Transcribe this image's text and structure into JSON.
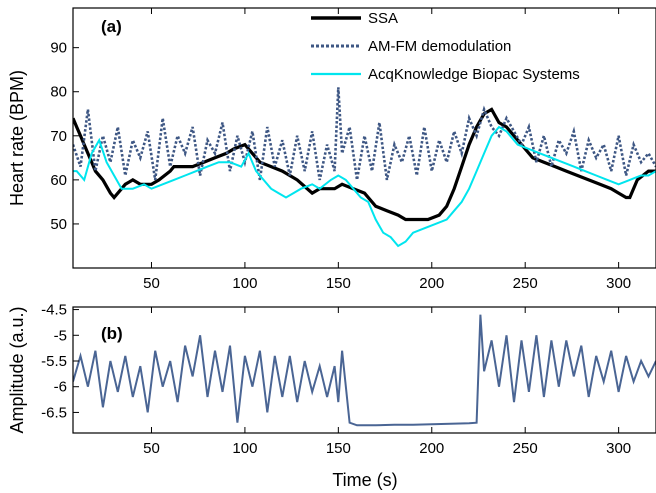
{
  "chart_data": [
    {
      "type": "line",
      "panel_label": "(a)",
      "ylabel": "Heart rate (BPM)",
      "xlim": [
        8,
        320
      ],
      "ylim": [
        40,
        99
      ],
      "xticks": [
        50,
        100,
        150,
        200,
        250,
        300
      ],
      "yticks": [
        50,
        60,
        70,
        80,
        90
      ],
      "grid": false,
      "legend_position": "top-center",
      "series": [
        {
          "name": "SSA",
          "color": "#000000",
          "style": "solid",
          "x": [
            8,
            10,
            12,
            14,
            18,
            20,
            24,
            28,
            30,
            34,
            36,
            40,
            44,
            50,
            54,
            60,
            62,
            66,
            72,
            78,
            84,
            90,
            94,
            100,
            104,
            108,
            114,
            120,
            128,
            136,
            140,
            148,
            152,
            158,
            164,
            170,
            176,
            182,
            186,
            192,
            198,
            204,
            208,
            212,
            216,
            220,
            224,
            228,
            232,
            236,
            240,
            244,
            248,
            254,
            260,
            266,
            272,
            278,
            284,
            290,
            296,
            300,
            304,
            306,
            310,
            316,
            320
          ],
          "values": [
            74,
            72,
            70,
            68,
            64,
            62,
            60,
            57,
            56,
            58,
            59,
            60,
            59,
            59,
            60,
            62,
            63,
            63,
            63,
            64,
            65,
            66,
            67,
            68,
            66,
            64,
            63,
            62,
            60,
            57,
            58,
            58,
            59,
            58,
            57,
            54,
            53,
            52,
            51,
            51,
            51,
            52,
            54,
            58,
            63,
            68,
            72,
            75,
            76,
            73,
            72,
            70,
            68,
            65,
            64,
            63,
            62,
            61,
            60,
            59,
            58,
            57,
            56,
            56,
            60,
            62,
            62
          ]
        },
        {
          "name": "AM-FM demodulation",
          "color": "#3e5784",
          "style": "dotted",
          "x": [
            8,
            12,
            16,
            20,
            24,
            28,
            32,
            36,
            40,
            44,
            48,
            52,
            56,
            60,
            64,
            68,
            72,
            76,
            80,
            84,
            88,
            92,
            96,
            100,
            104,
            108,
            112,
            116,
            120,
            124,
            128,
            132,
            136,
            140,
            144,
            148,
            150,
            152,
            156,
            160,
            164,
            168,
            172,
            176,
            180,
            184,
            188,
            192,
            196,
            200,
            204,
            208,
            212,
            216,
            220,
            224,
            228,
            232,
            236,
            240,
            244,
            248,
            252,
            256,
            260,
            264,
            268,
            272,
            276,
            280,
            284,
            288,
            292,
            296,
            300,
            304,
            308,
            312,
            316,
            320
          ],
          "values": [
            68,
            63,
            76,
            62,
            70,
            64,
            72,
            61,
            69,
            65,
            71,
            60,
            74,
            63,
            70,
            66,
            72,
            61,
            69,
            66,
            73,
            62,
            70,
            64,
            71,
            60,
            72,
            63,
            69,
            61,
            70,
            62,
            71,
            60,
            68,
            62,
            81,
            66,
            72,
            60,
            70,
            62,
            73,
            60,
            68,
            64,
            70,
            61,
            72,
            62,
            69,
            64,
            71,
            66,
            74,
            70,
            76,
            72,
            70,
            74,
            71,
            68,
            72,
            64,
            70,
            63,
            69,
            66,
            71,
            62,
            69,
            65,
            68,
            62,
            70,
            61,
            68,
            64,
            66,
            63
          ]
        },
        {
          "name": "AcqKnowledge Biopac Systems",
          "color": "#00e5ee",
          "style": "solid",
          "x": [
            8,
            10,
            14,
            18,
            22,
            26,
            30,
            34,
            40,
            46,
            50,
            56,
            62,
            68,
            74,
            80,
            86,
            92,
            98,
            102,
            106,
            110,
            114,
            118,
            122,
            126,
            130,
            136,
            140,
            146,
            150,
            154,
            158,
            162,
            166,
            170,
            174,
            178,
            182,
            186,
            190,
            196,
            202,
            208,
            212,
            216,
            220,
            224,
            228,
            232,
            236,
            240,
            246,
            252,
            258,
            264,
            270,
            276,
            282,
            288,
            294,
            300,
            306,
            312,
            316,
            320
          ],
          "values": [
            62,
            62,
            60,
            66,
            69,
            64,
            61,
            58,
            58,
            59,
            58,
            59,
            60,
            61,
            62,
            63,
            64,
            64,
            63,
            66,
            62,
            60,
            58,
            57,
            56,
            57,
            58,
            59,
            58,
            60,
            61,
            60,
            58,
            56,
            55,
            51,
            48,
            47,
            45,
            46,
            48,
            49,
            50,
            51,
            53,
            55,
            58,
            62,
            66,
            70,
            72,
            71,
            68,
            67,
            66,
            65,
            64,
            63,
            62,
            61,
            60,
            59,
            60,
            61,
            61,
            62
          ]
        }
      ]
    },
    {
      "type": "line",
      "panel_label": "(b)",
      "xlabel": "Time (s)",
      "ylabel": "Amplitude (a.u.)",
      "xlim": [
        8,
        320
      ],
      "ylim": [
        -6.9,
        -4.45
      ],
      "xticks": [
        50,
        100,
        150,
        200,
        250,
        300
      ],
      "yticks": [
        -4.5,
        -5,
        -5.5,
        -6,
        -6.5
      ],
      "ytick_labels": [
        "-4.5",
        "-5",
        "-5.5",
        "-6",
        "-6.5"
      ],
      "grid": false,
      "series": [
        {
          "color": "#4a6594",
          "style": "solid",
          "x": [
            8,
            12,
            16,
            20,
            24,
            28,
            32,
            36,
            40,
            44,
            48,
            52,
            56,
            60,
            64,
            68,
            72,
            76,
            80,
            84,
            88,
            92,
            96,
            100,
            104,
            108,
            112,
            116,
            120,
            124,
            128,
            132,
            136,
            140,
            144,
            148,
            150,
            152,
            156,
            160,
            170,
            180,
            190,
            200,
            210,
            220,
            224,
            226,
            228,
            232,
            236,
            240,
            244,
            248,
            252,
            256,
            260,
            264,
            268,
            272,
            276,
            280,
            284,
            288,
            292,
            296,
            300,
            304,
            308,
            312,
            316,
            320
          ],
          "values": [
            -5.9,
            -5.4,
            -6.0,
            -5.3,
            -6.4,
            -5.5,
            -6.1,
            -5.4,
            -6.2,
            -5.6,
            -6.5,
            -5.3,
            -6.0,
            -5.5,
            -6.3,
            -5.2,
            -5.8,
            -5.0,
            -6.2,
            -5.3,
            -6.1,
            -5.2,
            -6.7,
            -5.4,
            -6.0,
            -5.3,
            -6.5,
            -5.4,
            -6.2,
            -5.4,
            -6.3,
            -5.5,
            -6.1,
            -5.6,
            -6.2,
            -5.6,
            -6.3,
            -5.3,
            -6.7,
            -6.75,
            -6.75,
            -6.74,
            -6.74,
            -6.73,
            -6.72,
            -6.71,
            -6.7,
            -4.6,
            -5.7,
            -5.1,
            -6.0,
            -5.0,
            -6.3,
            -5.1,
            -6.1,
            -5.0,
            -6.2,
            -5.1,
            -6.0,
            -5.1,
            -5.8,
            -5.2,
            -6.2,
            -5.4,
            -5.9,
            -5.3,
            -6.1,
            -5.4,
            -5.9,
            -5.5,
            -5.8,
            -5.5
          ]
        }
      ]
    }
  ]
}
